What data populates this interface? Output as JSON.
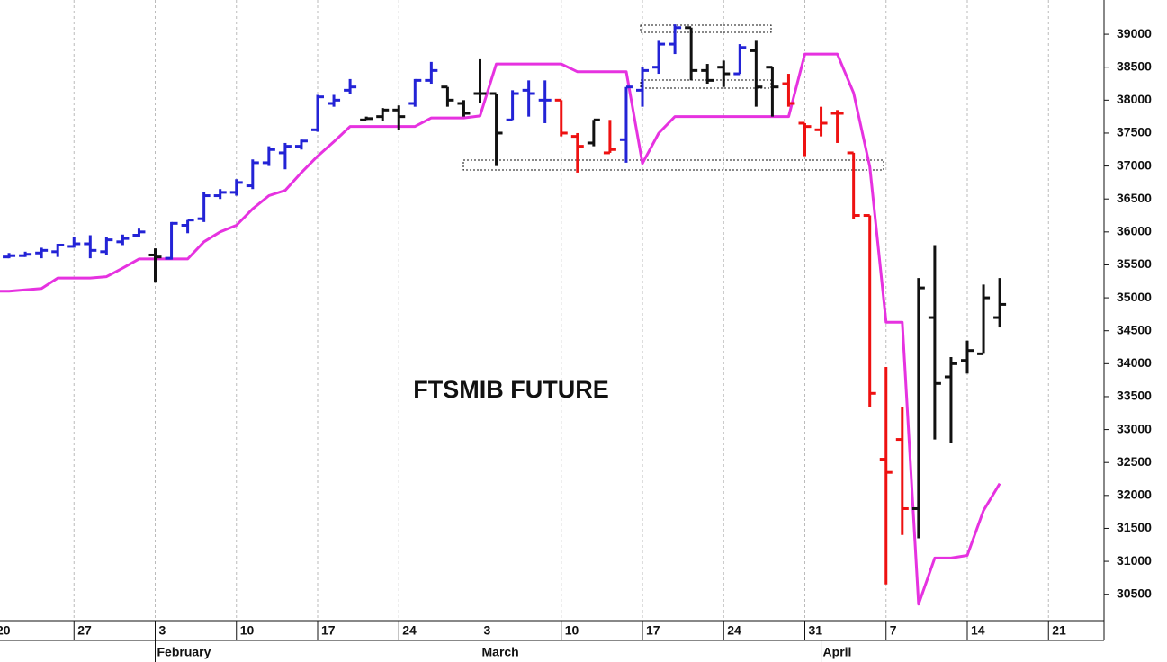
{
  "chart_data": {
    "type": "ohlc",
    "title": "FTSMIB FUTURE",
    "categories": [
      "20",
      null,
      null,
      null,
      null,
      "27",
      null,
      null,
      null,
      null,
      "3",
      null,
      null,
      null,
      null,
      "10",
      null,
      null,
      null,
      null,
      "17",
      null,
      null,
      null,
      null,
      "24",
      null,
      null,
      null,
      null,
      "3",
      null,
      null,
      null,
      null,
      "10",
      null,
      null,
      null,
      null,
      "17",
      null,
      null,
      null,
      null,
      "24",
      null,
      null,
      null,
      null,
      "31",
      null,
      null,
      null,
      null,
      "7",
      null,
      null,
      null,
      null,
      "14",
      null,
      null,
      null,
      null,
      "21",
      null,
      null
    ],
    "months": [
      null,
      null,
      null,
      null,
      null,
      null,
      null,
      null,
      null,
      null,
      "February",
      null,
      null,
      null,
      null,
      null,
      null,
      null,
      null,
      null,
      null,
      null,
      null,
      null,
      null,
      null,
      null,
      null,
      null,
      null,
      "March",
      null,
      null,
      null,
      null,
      null,
      null,
      null,
      null,
      null,
      null,
      null,
      null,
      null,
      null,
      null,
      null,
      null,
      null,
      null,
      null,
      "April",
      null,
      null,
      null,
      null,
      null,
      null,
      null,
      null,
      null,
      null,
      null,
      null,
      null,
      null,
      null,
      null
    ],
    "open": [
      35550,
      35620,
      35640,
      35680,
      35700,
      35780,
      35820,
      35700,
      35850,
      35950,
      35650,
      35600,
      36100,
      36200,
      36550,
      36600,
      36700,
      37050,
      37200,
      37300,
      37550,
      37950,
      38150,
      37700,
      37750,
      37850,
      37950,
      38300,
      38200,
      37950,
      38100,
      38100,
      37700,
      38150,
      38000,
      38000,
      37450,
      37350,
      37200,
      37400,
      38150,
      38500,
      38850,
      39100,
      38450,
      38500,
      38400,
      38750,
      38500,
      38250,
      37650,
      37550,
      37800,
      37200,
      36250,
      32550,
      32850,
      31800,
      34700,
      33800,
      34050,
      34150,
      34700,
      null,
      null,
      null,
      null,
      null
    ],
    "high": [
      35650,
      35680,
      35700,
      35760,
      35820,
      35920,
      35950,
      35920,
      35960,
      36050,
      35750,
      36150,
      36180,
      36600,
      36650,
      36800,
      37100,
      37300,
      37350,
      37400,
      38080,
      38080,
      38320,
      37750,
      37880,
      37920,
      38320,
      38580,
      38200,
      38000,
      38620,
      38100,
      38150,
      38300,
      38300,
      38000,
      37500,
      37700,
      37700,
      38200,
      38500,
      38900,
      39150,
      39100,
      38550,
      38600,
      38850,
      38900,
      38500,
      38400,
      37650,
      37900,
      37850,
      37200,
      36250,
      33950,
      33350,
      35300,
      35800,
      34100,
      34350,
      35200,
      35300,
      null,
      null,
      null,
      null,
      null
    ],
    "low": [
      35500,
      35600,
      35620,
      35600,
      35620,
      35760,
      35600,
      35650,
      35800,
      35920,
      35230,
      35580,
      35980,
      36150,
      36500,
      36550,
      36650,
      37000,
      36950,
      37250,
      37520,
      37900,
      38100,
      37700,
      37680,
      37550,
      37900,
      38250,
      37900,
      37750,
      37950,
      37000,
      37700,
      37750,
      37650,
      37450,
      36900,
      37300,
      37200,
      37050,
      37900,
      38400,
      38700,
      38300,
      38250,
      38200,
      38400,
      37900,
      37750,
      37900,
      37150,
      37450,
      37350,
      36200,
      33350,
      30650,
      31400,
      31350,
      32850,
      32800,
      33850,
      34150,
      34550,
      null,
      null,
      null,
      null,
      null
    ],
    "close": [
      35600,
      35640,
      35660,
      35720,
      35800,
      35820,
      35720,
      35880,
      35900,
      36000,
      35620,
      36130,
      36180,
      36550,
      36600,
      36750,
      37050,
      37250,
      37300,
      37380,
      38050,
      38000,
      38200,
      37720,
      37850,
      37750,
      38300,
      38450,
      38000,
      37800,
      38100,
      37500,
      38100,
      38100,
      38000,
      37500,
      37300,
      37700,
      37250,
      38200,
      38450,
      38850,
      39100,
      38450,
      38300,
      38400,
      38800,
      38200,
      38200,
      37950,
      37600,
      37650,
      37800,
      36250,
      33550,
      32350,
      31800,
      35150,
      33700,
      34000,
      34200,
      35000,
      34900,
      null,
      null,
      null,
      null,
      null
    ],
    "bar_colors": [
      "#2323d6",
      "#2323d6",
      "#2323d6",
      "#2323d6",
      "#2323d6",
      "#2323d6",
      "#2323d6",
      "#2323d6",
      "#2323d6",
      "#2323d6",
      "#111111",
      "#2323d6",
      "#2323d6",
      "#2323d6",
      "#2323d6",
      "#2323d6",
      "#2323d6",
      "#2323d6",
      "#2323d6",
      "#2323d6",
      "#2323d6",
      "#2323d6",
      "#2323d6",
      "#111111",
      "#111111",
      "#111111",
      "#2323d6",
      "#2323d6",
      "#111111",
      "#111111",
      "#111111",
      "#111111",
      "#2323d6",
      "#2323d6",
      "#2323d6",
      "#ee1111",
      "#ee1111",
      "#111111",
      "#ee1111",
      "#2323d6",
      "#2323d6",
      "#2323d6",
      "#2323d6",
      "#111111",
      "#111111",
      "#111111",
      "#2323d6",
      "#111111",
      "#111111",
      "#ee1111",
      "#ee1111",
      "#ee1111",
      "#ee1111",
      "#ee1111",
      "#ee1111",
      "#ee1111",
      "#ee1111",
      "#111111",
      "#111111",
      "#111111",
      "#111111",
      "#111111",
      "#111111",
      null,
      null,
      null,
      null,
      null
    ],
    "overlay": {
      "type": "line",
      "color": "#e632e0",
      "values": [
        35100,
        35100,
        35120,
        35140,
        35300,
        35300,
        35300,
        35320,
        35450,
        35590,
        35590,
        35590,
        35590,
        35850,
        36000,
        36100,
        36350,
        36550,
        36630,
        36900,
        37150,
        37370,
        37600,
        37600,
        37600,
        37600,
        37600,
        37730,
        37730,
        37730,
        37760,
        38550,
        38550,
        38550,
        38550,
        38550,
        38430,
        38430,
        38430,
        38430,
        37040,
        37500,
        37750,
        37750,
        37750,
        37750,
        37750,
        37750,
        37750,
        37750,
        38700,
        38700,
        38700,
        38110,
        36990,
        34630,
        34630,
        30350,
        31050,
        31050,
        31090,
        31770,
        32180,
        null,
        null,
        null,
        null,
        null
      ]
    },
    "ylim": [
      30100,
      39520
    ],
    "yticks": [
      30500,
      31000,
      31500,
      32000,
      32500,
      33000,
      33500,
      34000,
      34500,
      35000,
      35500,
      36000,
      36500,
      37000,
      37500,
      38000,
      38500,
      39000
    ],
    "grid": true
  }
}
